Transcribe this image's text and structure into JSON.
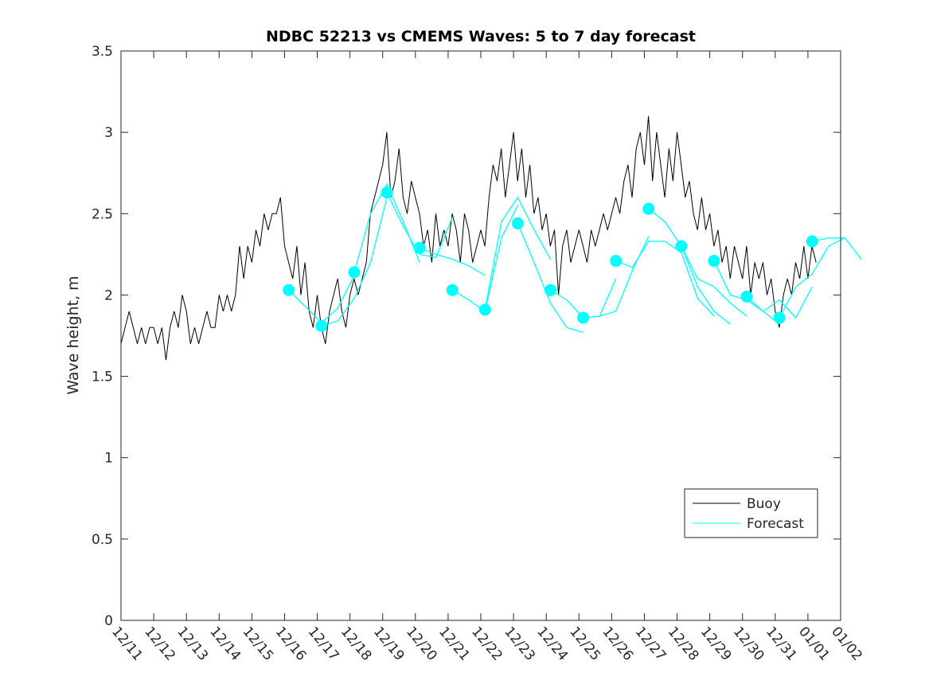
{
  "chart_data": {
    "type": "line",
    "title": "NDBC 52213 vs CMEMS Waves: 5 to 7 day forecast",
    "xlabel": "",
    "ylabel": "Wave height, m",
    "ylim": [
      0,
      3.5
    ],
    "xlim_days": [
      0,
      22
    ],
    "yticks": [
      "0",
      "0.5",
      "1",
      "1.5",
      "2",
      "2.5",
      "3",
      "3.5"
    ],
    "ytick_values": [
      0,
      0.5,
      1,
      1.5,
      2,
      2.5,
      3,
      3.5
    ],
    "xticks": [
      "12/11",
      "12/12",
      "12/13",
      "12/14",
      "12/15",
      "12/16",
      "12/17",
      "12/18",
      "12/19",
      "12/20",
      "12/21",
      "12/22",
      "12/23",
      "12/24",
      "12/25",
      "12/26",
      "12/27",
      "12/28",
      "12/29",
      "12/30",
      "12/31",
      "01/01",
      "01/02"
    ],
    "grid": false,
    "legend": {
      "placement": "bottom-right",
      "entries": [
        "Buoy",
        "Forecast"
      ]
    },
    "colors": {
      "buoy": "#000000",
      "forecast": "#00ffff"
    },
    "buoy": {
      "name": "Buoy",
      "start_day": 0,
      "step_days": 0.125,
      "values": [
        1.7,
        1.8,
        1.9,
        1.8,
        1.7,
        1.8,
        1.7,
        1.8,
        1.8,
        1.7,
        1.8,
        1.6,
        1.8,
        1.9,
        1.8,
        2.0,
        1.9,
        1.7,
        1.8,
        1.7,
        1.8,
        1.9,
        1.8,
        1.8,
        2.0,
        1.9,
        2.0,
        1.9,
        2.0,
        2.3,
        2.1,
        2.3,
        2.2,
        2.4,
        2.3,
        2.5,
        2.4,
        2.5,
        2.5,
        2.6,
        2.3,
        2.2,
        2.1,
        2.3,
        2.0,
        2.2,
        1.9,
        1.8,
        2.0,
        1.8,
        1.7,
        1.9,
        2.0,
        2.1,
        1.9,
        1.8,
        2.0,
        2.1,
        2.0,
        2.1,
        2.2,
        2.5,
        2.6,
        2.7,
        2.8,
        3.0,
        2.6,
        2.7,
        2.9,
        2.6,
        2.5,
        2.7,
        2.6,
        2.5,
        2.3,
        2.4,
        2.2,
        2.5,
        2.3,
        2.4,
        2.3,
        2.5,
        2.4,
        2.2,
        2.5,
        2.4,
        2.2,
        2.3,
        2.4,
        2.3,
        2.6,
        2.8,
        2.7,
        2.9,
        2.6,
        2.8,
        3.0,
        2.7,
        2.9,
        2.6,
        2.8,
        2.5,
        2.6,
        2.4,
        2.5,
        2.3,
        2.4,
        2.0,
        2.3,
        2.4,
        2.2,
        2.3,
        2.4,
        2.3,
        2.2,
        2.4,
        2.3,
        2.4,
        2.5,
        2.4,
        2.5,
        2.6,
        2.5,
        2.7,
        2.8,
        2.6,
        2.9,
        3.0,
        2.8,
        3.1,
        2.7,
        3.0,
        2.8,
        2.6,
        2.9,
        2.7,
        3.0,
        2.8,
        2.6,
        2.7,
        2.5,
        2.4,
        2.6,
        2.4,
        2.5,
        2.3,
        2.4,
        2.2,
        2.3,
        2.1,
        2.3,
        2.2,
        2.1,
        2.3,
        2.0,
        2.2,
        2.1,
        2.2,
        2.0,
        2.1,
        1.9,
        1.8,
        2.0,
        2.1,
        2.0,
        2.2,
        2.1,
        2.3,
        2.1,
        2.3,
        2.2
      ]
    },
    "forecast": {
      "name": "Forecast",
      "step_days": 0.5,
      "segments": [
        {
          "start_day": 5.13,
          "values": [
            2.03,
            1.93,
            1.83,
            1.92,
            2.12
          ]
        },
        {
          "start_day": 6.13,
          "values": [
            1.81,
            1.84,
            1.98,
            2.2,
            2.6
          ]
        },
        {
          "start_day": 7.13,
          "values": [
            2.14,
            2.5,
            2.68,
            2.45,
            2.2
          ]
        },
        {
          "start_day": 8.13,
          "values": [
            2.63,
            2.42,
            2.25,
            2.23,
            2.48
          ]
        },
        {
          "start_day": 9.13,
          "values": [
            2.29,
            2.25,
            2.22,
            2.18,
            2.12
          ]
        },
        {
          "start_day": 10.13,
          "values": [
            2.03,
            1.97,
            1.9,
            2.35,
            2.55
          ]
        },
        {
          "start_day": 11.13,
          "values": [
            1.91,
            2.45,
            2.6,
            2.4,
            2.22
          ]
        },
        {
          "start_day": 12.13,
          "values": [
            2.44,
            2.2,
            1.95,
            1.8,
            1.77
          ]
        },
        {
          "start_day": 13.13,
          "values": [
            2.03,
            1.97,
            1.86,
            1.87,
            2.1
          ]
        },
        {
          "start_day": 14.13,
          "values": [
            1.86,
            1.87,
            1.9,
            2.15,
            2.36
          ]
        },
        {
          "start_day": 15.13,
          "values": [
            2.21,
            2.17,
            2.33,
            2.33,
            2.26,
            1.98,
            1.87
          ]
        },
        {
          "start_day": 16.13,
          "values": [
            2.53,
            2.45,
            2.3,
            2.05,
            1.9,
            1.82
          ]
        },
        {
          "start_day": 17.13,
          "values": [
            2.3,
            2.1,
            2.05,
            1.95,
            1.87
          ]
        },
        {
          "start_day": 18.13,
          "values": [
            2.21,
            2.0,
            1.97,
            1.9,
            1.82
          ]
        },
        {
          "start_day": 19.13,
          "values": [
            1.99,
            1.9,
            1.97,
            1.86,
            2.05
          ]
        },
        {
          "start_day": 20.13,
          "values": [
            1.86,
            2.05,
            2.13,
            2.3,
            2.35
          ]
        },
        {
          "start_day": 21.13,
          "values": [
            2.33,
            2.35,
            2.35,
            2.22
          ]
        }
      ]
    }
  }
}
